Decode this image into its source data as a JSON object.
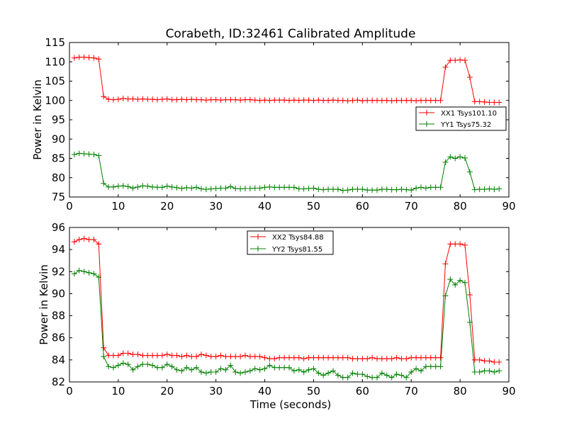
{
  "title": "Corabeth, ID:32461 Calibrated Amplitude",
  "colors": {
    "red": "#ff0000",
    "green": "#008000"
  },
  "chart_data": [
    {
      "type": "line",
      "ylabel": "Power in Kelvin",
      "xlabel": "",
      "xlim": [
        0,
        90
      ],
      "ylim": [
        75,
        115
      ],
      "xticks": [
        0,
        10,
        20,
        30,
        40,
        50,
        60,
        70,
        80,
        90
      ],
      "yticks": [
        75,
        80,
        85,
        90,
        95,
        100,
        105,
        110,
        115
      ],
      "legend_position": "right",
      "x": [
        1,
        2,
        3,
        4,
        5,
        6,
        7,
        8,
        9,
        10,
        11,
        12,
        13,
        14,
        15,
        16,
        17,
        18,
        19,
        20,
        21,
        22,
        23,
        24,
        25,
        26,
        27,
        28,
        29,
        30,
        31,
        32,
        33,
        34,
        35,
        36,
        37,
        38,
        39,
        40,
        41,
        42,
        43,
        44,
        45,
        46,
        47,
        48,
        49,
        50,
        51,
        52,
        53,
        54,
        55,
        56,
        57,
        58,
        59,
        60,
        61,
        62,
        63,
        64,
        65,
        66,
        67,
        68,
        69,
        70,
        71,
        72,
        73,
        74,
        75,
        76,
        77,
        78,
        79,
        80,
        81,
        82,
        83,
        84,
        85,
        86,
        87,
        88
      ],
      "series": [
        {
          "name": "XX1 Tsys101.10",
          "color": "#ff0000",
          "values": [
            111.0,
            111.2,
            111.2,
            111.1,
            111.0,
            110.7,
            101.0,
            100.3,
            100.2,
            100.3,
            100.5,
            100.4,
            100.4,
            100.3,
            100.4,
            100.3,
            100.3,
            100.2,
            100.3,
            100.4,
            100.2,
            100.2,
            100.3,
            100.2,
            100.3,
            100.2,
            100.2,
            100.1,
            100.2,
            100.2,
            100.1,
            100.2,
            100.2,
            100.2,
            100.1,
            100.2,
            100.2,
            100.1,
            100.0,
            100.1,
            100.0,
            100.1,
            100.1,
            100.1,
            100.0,
            100.1,
            100.0,
            100.1,
            100.1,
            100.0,
            100.1,
            100.0,
            100.0,
            100.1,
            100.0,
            100.0,
            99.9,
            100.0,
            100.1,
            99.9,
            100.0,
            100.0,
            100.0,
            100.0,
            100.0,
            99.9,
            100.0,
            100.0,
            100.0,
            100.0,
            99.9,
            100.0,
            100.0,
            100.0,
            100.0,
            100.0,
            108.6,
            110.4,
            110.4,
            110.5,
            110.4,
            106.0,
            99.7,
            99.7,
            99.6,
            99.5,
            99.5,
            99.5
          ]
        },
        {
          "name": "YY1 Tsys75.32",
          "color": "#008000",
          "values": [
            86.0,
            86.3,
            86.2,
            86.1,
            86.0,
            85.7,
            78.5,
            77.6,
            77.6,
            77.8,
            77.9,
            77.7,
            77.3,
            77.6,
            77.9,
            77.8,
            77.6,
            77.5,
            77.5,
            77.8,
            77.6,
            77.4,
            77.2,
            77.4,
            77.3,
            77.5,
            77.1,
            77.0,
            77.1,
            77.2,
            77.3,
            77.3,
            77.7,
            77.2,
            77.1,
            77.2,
            77.2,
            77.3,
            77.3,
            77.5,
            77.6,
            77.5,
            77.5,
            77.5,
            77.5,
            77.5,
            77.1,
            77.1,
            77.2,
            77.3,
            77.0,
            76.9,
            77.0,
            77.0,
            77.0,
            76.7,
            76.8,
            77.0,
            77.0,
            77.0,
            76.8,
            76.8,
            76.8,
            77.0,
            77.0,
            76.9,
            76.9,
            77.0,
            76.9,
            76.8,
            77.3,
            77.5,
            77.3,
            77.5,
            77.5,
            77.5,
            84.0,
            85.4,
            85.0,
            85.4,
            85.1,
            81.5,
            76.9,
            77.0,
            77.0,
            77.1,
            77.0,
            77.1
          ]
        }
      ]
    },
    {
      "type": "line",
      "ylabel": "Power in Kelvin",
      "xlabel": "Time (seconds)",
      "xlim": [
        0,
        90
      ],
      "ylim": [
        82,
        96
      ],
      "xticks": [
        0,
        10,
        20,
        30,
        40,
        50,
        60,
        70,
        80,
        90
      ],
      "yticks": [
        82,
        84,
        86,
        88,
        90,
        92,
        94,
        96
      ],
      "legend_position": "top-center",
      "x": [
        1,
        2,
        3,
        4,
        5,
        6,
        7,
        8,
        9,
        10,
        11,
        12,
        13,
        14,
        15,
        16,
        17,
        18,
        19,
        20,
        21,
        22,
        23,
        24,
        25,
        26,
        27,
        28,
        29,
        30,
        31,
        32,
        33,
        34,
        35,
        36,
        37,
        38,
        39,
        40,
        41,
        42,
        43,
        44,
        45,
        46,
        47,
        48,
        49,
        50,
        51,
        52,
        53,
        54,
        55,
        56,
        57,
        58,
        59,
        60,
        61,
        62,
        63,
        64,
        65,
        66,
        67,
        68,
        69,
        70,
        71,
        72,
        73,
        74,
        75,
        76,
        77,
        78,
        79,
        80,
        81,
        82,
        83,
        84,
        85,
        86,
        87,
        88
      ],
      "series": [
        {
          "name": "XX2 Tsys84.88",
          "color": "#ff0000",
          "values": [
            94.7,
            94.9,
            95.0,
            94.9,
            94.9,
            94.5,
            85.1,
            84.4,
            84.4,
            84.4,
            84.6,
            84.6,
            84.5,
            84.5,
            84.4,
            84.4,
            84.4,
            84.4,
            84.4,
            84.5,
            84.4,
            84.4,
            84.3,
            84.4,
            84.3,
            84.3,
            84.5,
            84.4,
            84.3,
            84.3,
            84.4,
            84.3,
            84.3,
            84.3,
            84.3,
            84.4,
            84.3,
            84.3,
            84.3,
            84.2,
            84.1,
            84.1,
            84.2,
            84.2,
            84.2,
            84.2,
            84.2,
            84.1,
            84.2,
            84.2,
            84.2,
            84.2,
            84.2,
            84.2,
            84.2,
            84.2,
            84.2,
            84.1,
            84.1,
            84.1,
            84.1,
            84.2,
            84.1,
            84.1,
            84.1,
            84.1,
            84.2,
            84.1,
            84.1,
            84.2,
            84.2,
            84.2,
            84.2,
            84.2,
            84.2,
            84.2,
            92.7,
            94.5,
            94.5,
            94.5,
            94.4,
            89.9,
            84.0,
            84.0,
            83.9,
            83.9,
            83.8,
            83.8
          ]
        },
        {
          "name": "YY2 Tsys81.55",
          "color": "#008000",
          "values": [
            91.8,
            92.1,
            92.0,
            91.9,
            91.8,
            91.5,
            84.3,
            83.4,
            83.3,
            83.5,
            83.7,
            83.6,
            83.1,
            83.4,
            83.6,
            83.6,
            83.5,
            83.3,
            83.3,
            83.6,
            83.4,
            83.1,
            83.0,
            83.3,
            83.1,
            83.3,
            82.9,
            82.8,
            82.9,
            82.9,
            83.2,
            83.1,
            83.5,
            82.9,
            82.8,
            82.9,
            83.0,
            83.2,
            83.1,
            83.2,
            83.5,
            83.3,
            83.3,
            83.3,
            83.3,
            83.0,
            83.1,
            82.9,
            83.1,
            83.2,
            82.8,
            82.6,
            82.8,
            83.0,
            82.6,
            82.4,
            82.4,
            82.8,
            82.7,
            82.7,
            82.5,
            82.4,
            82.4,
            82.8,
            82.6,
            82.4,
            82.7,
            82.6,
            82.4,
            82.9,
            83.2,
            83.0,
            83.4,
            83.4,
            83.4,
            83.4,
            89.8,
            91.3,
            90.8,
            91.2,
            91.0,
            87.4,
            82.9,
            82.9,
            83.0,
            83.0,
            82.9,
            83.0
          ]
        }
      ]
    }
  ]
}
